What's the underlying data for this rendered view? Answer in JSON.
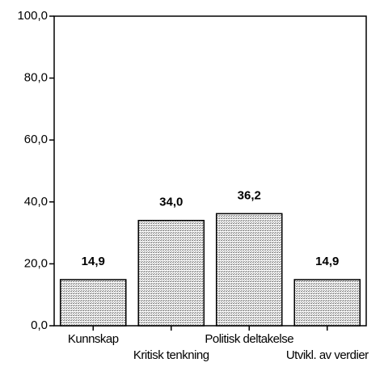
{
  "chart_data": {
    "type": "bar",
    "categories": [
      "Kunnskap",
      "Kritisk tenkning",
      "Politisk deltakelse",
      "Utvikl. av verdier"
    ],
    "values": [
      14.9,
      34.0,
      36.2,
      14.9
    ],
    "value_labels": [
      "14,9",
      "34,0",
      "36,2",
      "14,9"
    ],
    "color": "#c8c8c8",
    "ylim": [
      0,
      100
    ],
    "yticks": [
      {
        "value": 0,
        "label": "0,0"
      },
      {
        "value": 20,
        "label": "20,0"
      },
      {
        "value": 40,
        "label": "40,0"
      },
      {
        "value": 60,
        "label": "60,0"
      },
      {
        "value": 80,
        "label": "80,0"
      },
      {
        "value": 100,
        "label": "100,0"
      }
    ],
    "grid": false
  }
}
